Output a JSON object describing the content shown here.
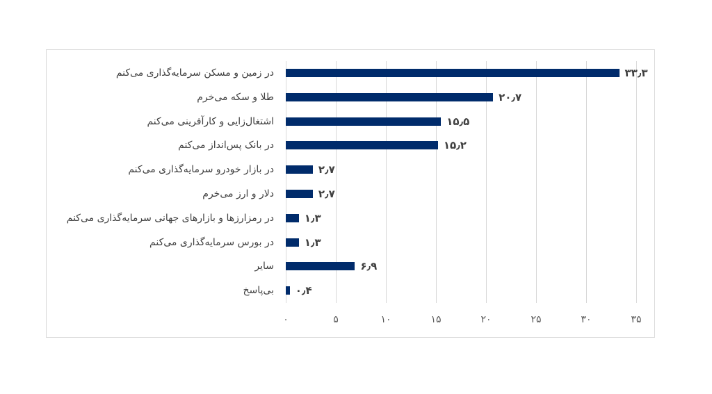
{
  "chart_data": {
    "type": "bar",
    "orientation": "horizontal",
    "title": "",
    "xlabel": "",
    "ylabel": "",
    "xlim": [
      0,
      35
    ],
    "grid": true,
    "legend": null,
    "bar_color": "#002b6b",
    "categories": [
      "در زمین و مسکن سرمایه‌گذاری می‌کنم",
      "طلا و سکه می‌خرم",
      "اشتغال‌زایی و کارآفرینی می‌کنم",
      "در بانک پس‌انداز می‌کنم",
      "در بازار خودرو سرمایه‌گذاری می‌کنم",
      "دلار و ارز می‌خرم",
      "در رمزارزها و بازارهای جهانی سرمایه‌گذاری می‌کنم",
      "در بورس سرمایه‌گذاری می‌کنم",
      "سایر",
      "بی‌پاسخ"
    ],
    "values": [
      33.3,
      20.7,
      15.5,
      15.2,
      2.7,
      2.7,
      1.3,
      1.3,
      6.9,
      0.4
    ],
    "value_labels": [
      "۳۳٫۳",
      "۲۰٫۷",
      "۱۵٫۵",
      "۱۵٫۲",
      "۲٫۷",
      "۲٫۷",
      "۱٫۳",
      "۱٫۳",
      "۶٫۹",
      "۰٫۴"
    ],
    "ticks": [
      0,
      5,
      10,
      15,
      20,
      25,
      30,
      35
    ],
    "tick_labels": [
      "۰",
      "۵",
      "۱۰",
      "۱۵",
      "۲۰",
      "۲۵",
      "۳۰",
      "۳۵"
    ]
  }
}
